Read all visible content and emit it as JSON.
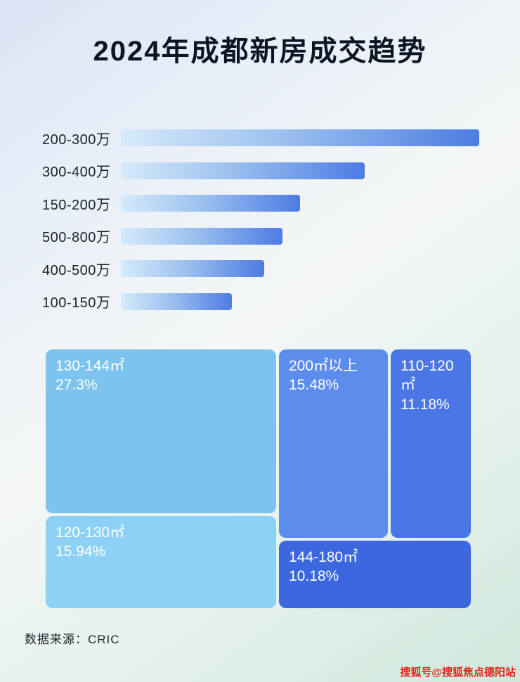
{
  "title": "2024年成都新房成交趋势",
  "footer": {
    "source_label": "数据来源：CRIC"
  },
  "watermark": "搜狐号@搜狐焦点德阳站",
  "colors": {
    "title_color": "#0c1524",
    "bar_gradient_start": "#d6eafa",
    "bar_gradient_end": "#4d7ce3",
    "watermark_color": "#e2231a"
  },
  "chart_data": [
    {
      "type": "bar",
      "orientation": "horizontal",
      "title": "2024年成都新房成交趋势",
      "categories": [
        "200-300万",
        "300-400万",
        "150-200万",
        "500-800万",
        "400-500万",
        "100-150万"
      ],
      "values": [
        100,
        68,
        50,
        45,
        40,
        31
      ],
      "value_note": "relative bar lengths, max bar = 100; no numeric labels shown in chart",
      "xlabel": "",
      "ylabel": "",
      "grid": false,
      "legend": false
    },
    {
      "type": "treemap",
      "items": [
        {
          "label": "130-144㎡",
          "percent": "27.3%",
          "value": 27.3,
          "color": "#7cc4ef"
        },
        {
          "label": "120-130㎡",
          "percent": "15.94%",
          "value": 15.94,
          "color": "#8ed1f6"
        },
        {
          "label": "200㎡以上",
          "percent": "15.48%",
          "value": 15.48,
          "color": "#5c8cec"
        },
        {
          "label": "110-120㎡",
          "percent": "11.18%",
          "value": 11.18,
          "color": "#4b77e6"
        },
        {
          "label": "144-180㎡",
          "percent": "10.18%",
          "value": 10.18,
          "color": "#3c67de"
        }
      ]
    }
  ]
}
